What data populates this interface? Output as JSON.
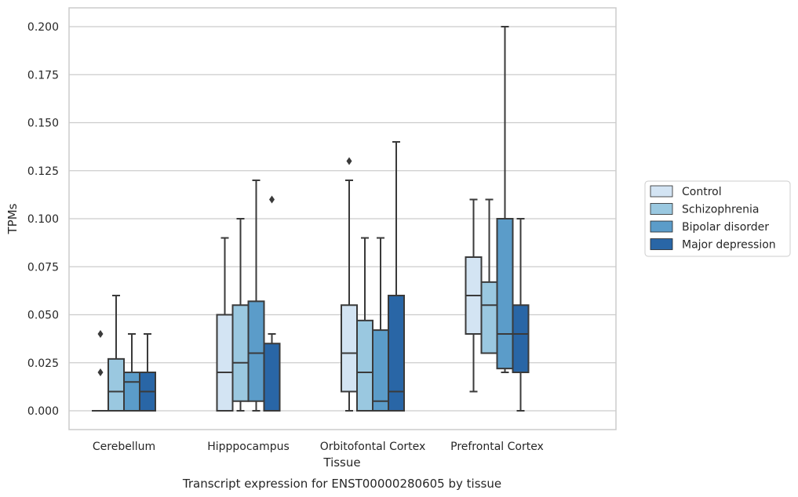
{
  "chart_data": {
    "type": "box",
    "title": "",
    "caption": "Transcript expression for ENST00000280605 by tissue",
    "xlabel": "Tissue",
    "ylabel": "TPMs",
    "ylim": [
      -0.01,
      0.21
    ],
    "yticks": [
      "0.000",
      "0.025",
      "0.050",
      "0.075",
      "0.100",
      "0.125",
      "0.150",
      "0.175",
      "0.200"
    ],
    "grid": "horizontal",
    "legend_position": "right",
    "categories": [
      "Cerebellum",
      "Hipppocampus",
      "Orbitofontal Cortex",
      "Prefrontal Cortex"
    ],
    "series": [
      {
        "name": "Control",
        "color": "#d3e4f3",
        "boxes": [
          {
            "whislo": 0.0,
            "q1": 0.0,
            "med": 0.0,
            "q3": 0.0,
            "whishi": 0.0,
            "fliers": [
              0.02,
              0.04
            ]
          },
          {
            "whislo": 0.0,
            "q1": 0.0,
            "med": 0.02,
            "q3": 0.05,
            "whishi": 0.09,
            "fliers": []
          },
          {
            "whislo": 0.0,
            "q1": 0.01,
            "med": 0.03,
            "q3": 0.055,
            "whishi": 0.12,
            "fliers": [
              0.13
            ]
          },
          {
            "whislo": 0.01,
            "q1": 0.04,
            "med": 0.06,
            "q3": 0.08,
            "whishi": 0.11,
            "fliers": []
          }
        ]
      },
      {
        "name": "Schizophrenia",
        "color": "#9ac8e0",
        "boxes": [
          {
            "whislo": 0.0,
            "q1": 0.0,
            "med": 0.01,
            "q3": 0.027,
            "whishi": 0.06,
            "fliers": []
          },
          {
            "whislo": 0.0,
            "q1": 0.005,
            "med": 0.025,
            "q3": 0.055,
            "whishi": 0.1,
            "fliers": []
          },
          {
            "whislo": 0.0,
            "q1": 0.0,
            "med": 0.02,
            "q3": 0.047,
            "whishi": 0.09,
            "fliers": []
          },
          {
            "whislo": 0.03,
            "q1": 0.03,
            "med": 0.055,
            "q3": 0.067,
            "whishi": 0.11,
            "fliers": []
          }
        ]
      },
      {
        "name": "Bipolar disorder",
        "color": "#5b9cc9",
        "boxes": [
          {
            "whislo": 0.0,
            "q1": 0.0,
            "med": 0.015,
            "q3": 0.02,
            "whishi": 0.04,
            "fliers": []
          },
          {
            "whislo": 0.0,
            "q1": 0.005,
            "med": 0.03,
            "q3": 0.057,
            "whishi": 0.12,
            "fliers": []
          },
          {
            "whislo": 0.0,
            "q1": 0.0,
            "med": 0.005,
            "q3": 0.042,
            "whishi": 0.09,
            "fliers": []
          },
          {
            "whislo": 0.02,
            "q1": 0.022,
            "med": 0.04,
            "q3": 0.1,
            "whishi": 0.2,
            "fliers": []
          }
        ]
      },
      {
        "name": "Major depression",
        "color": "#2966a6",
        "boxes": [
          {
            "whislo": 0.0,
            "q1": 0.0,
            "med": 0.01,
            "q3": 0.02,
            "whishi": 0.04,
            "fliers": []
          },
          {
            "whislo": 0.0,
            "q1": 0.0,
            "med": 0.0,
            "q3": 0.035,
            "whishi": 0.04,
            "fliers": [
              0.11
            ]
          },
          {
            "whislo": 0.0,
            "q1": 0.0,
            "med": 0.01,
            "q3": 0.06,
            "whishi": 0.14,
            "fliers": []
          },
          {
            "whislo": 0.0,
            "q1": 0.02,
            "med": 0.04,
            "q3": 0.055,
            "whishi": 0.1,
            "fliers": []
          }
        ]
      }
    ]
  }
}
